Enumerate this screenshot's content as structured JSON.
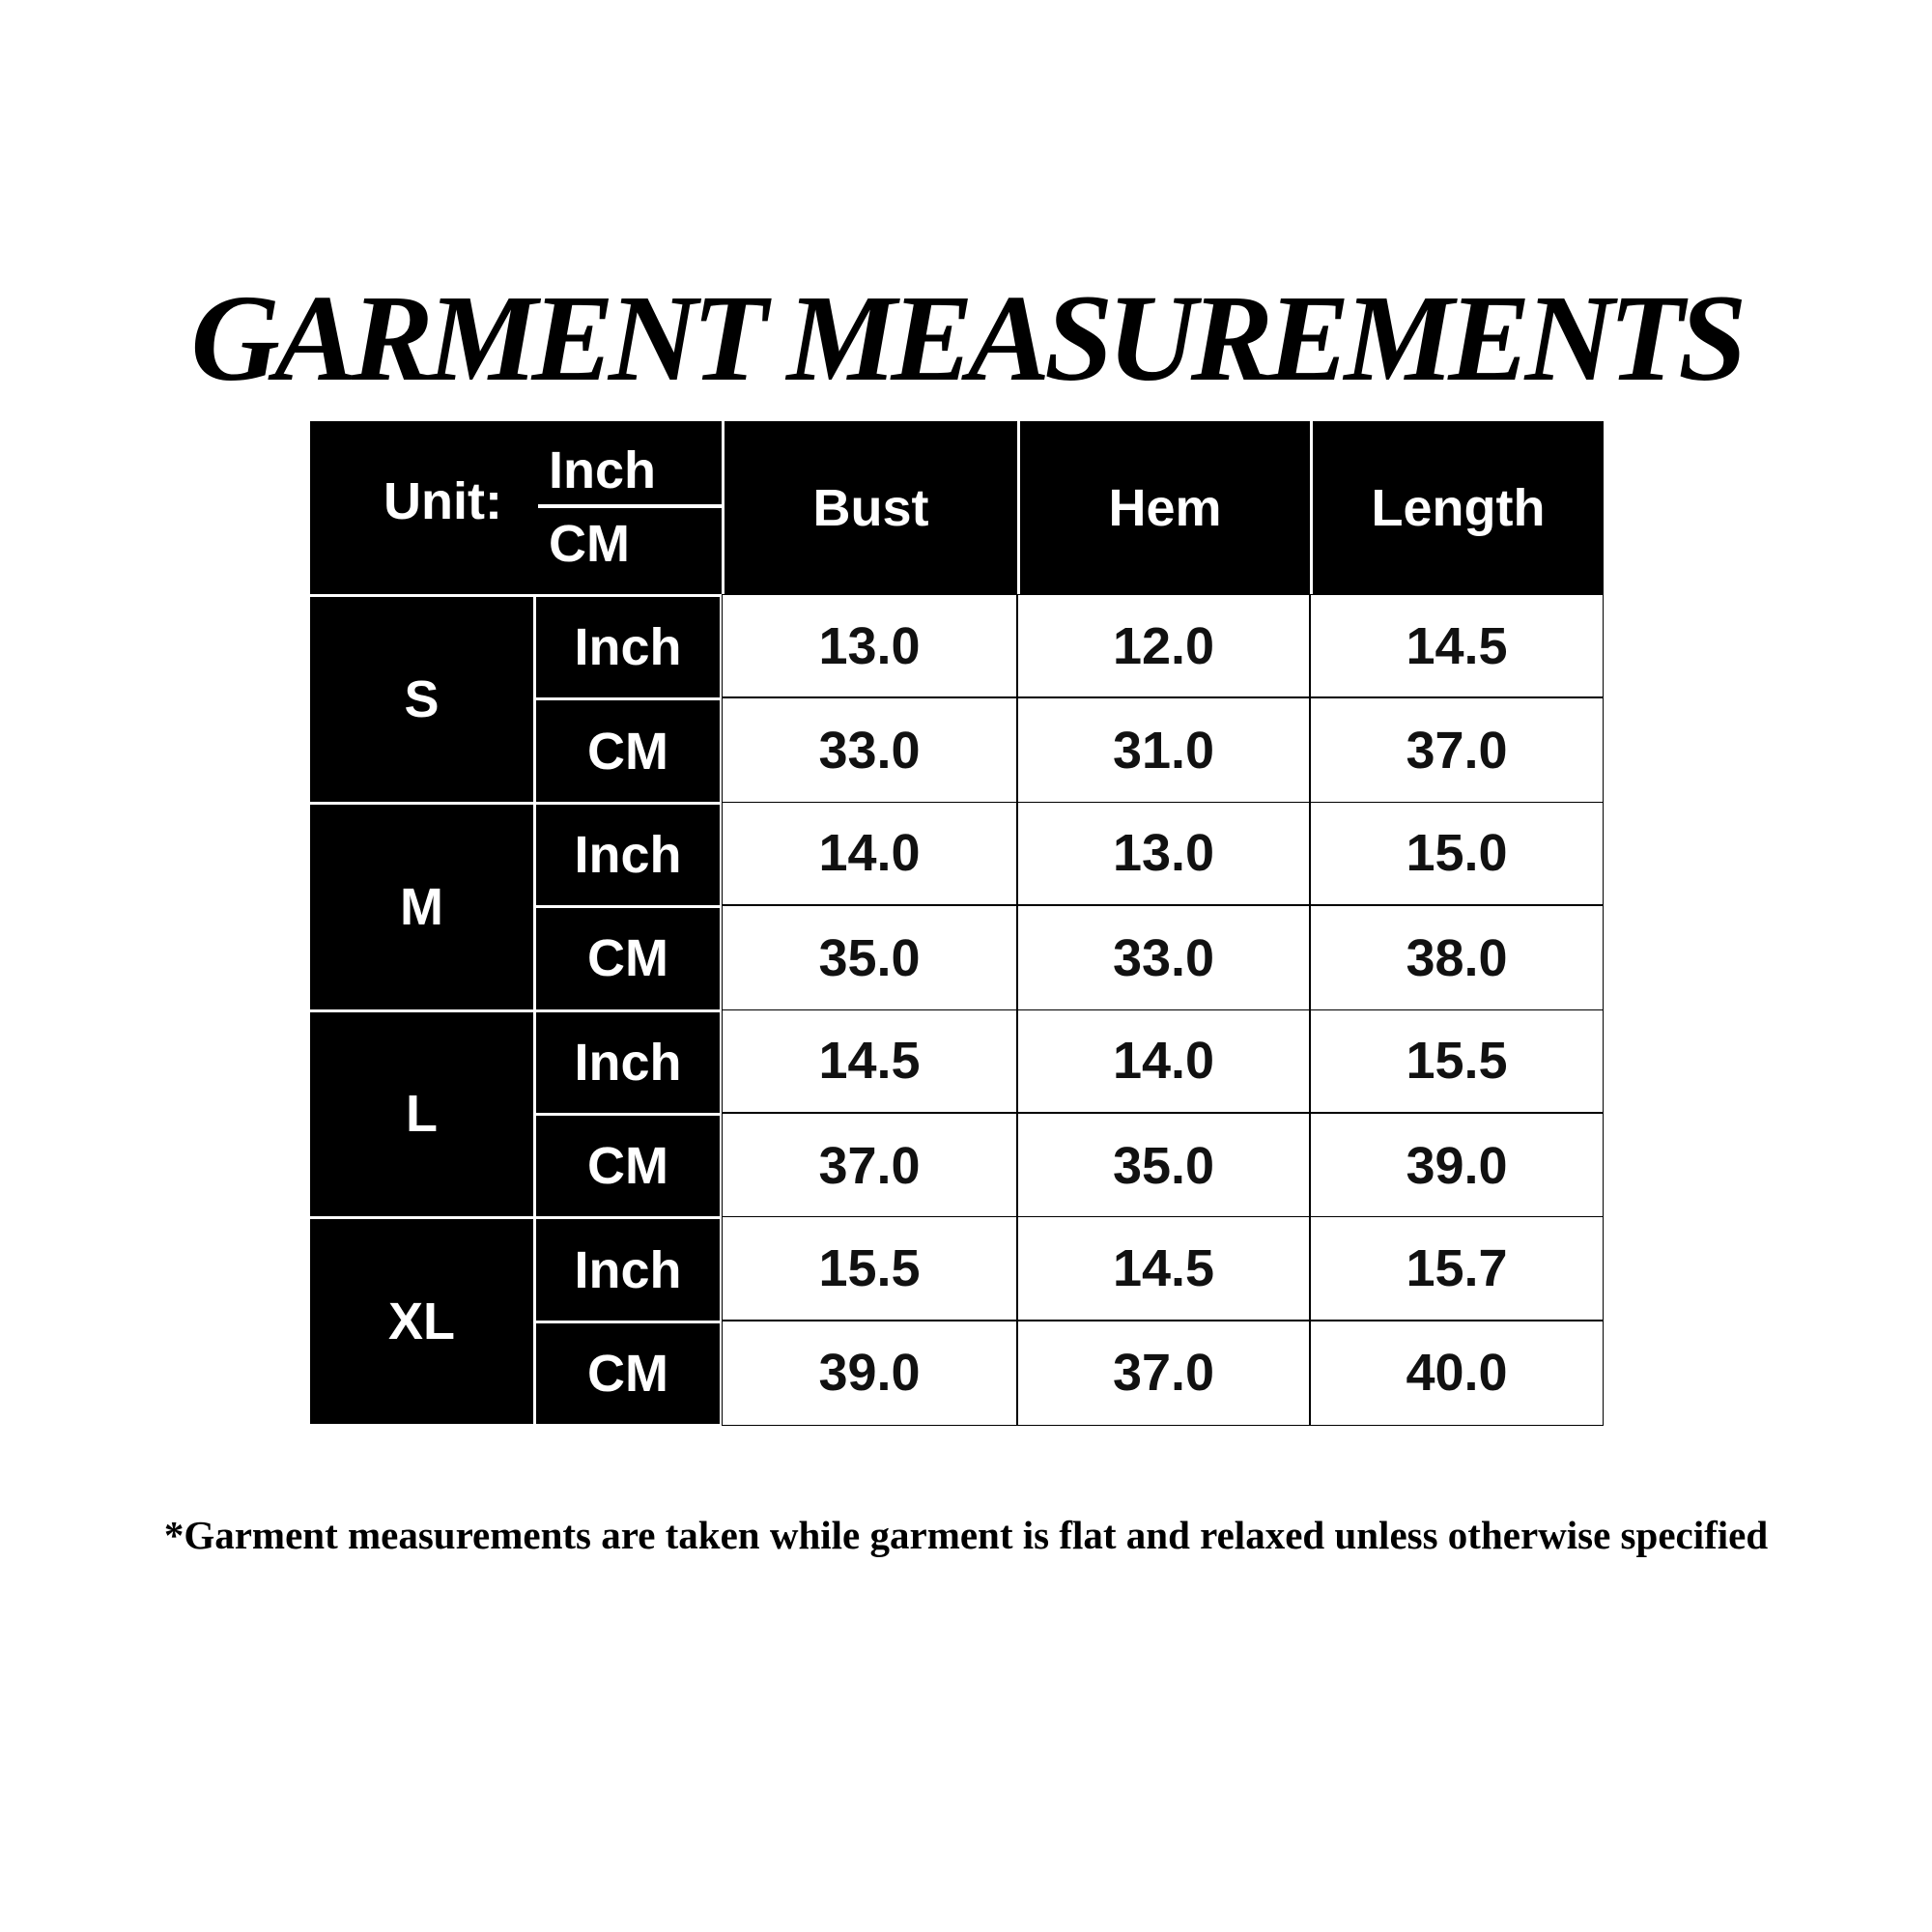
{
  "title": "GARMENT MEASUREMENTS",
  "table": {
    "unit_label": "Unit:",
    "unit_inch": "Inch",
    "unit_cm": "CM",
    "columns": [
      "Bust",
      "Hem",
      "Length"
    ],
    "sizes": [
      {
        "size": "S",
        "inch": {
          "label": "Inch",
          "values": [
            "13.0",
            "12.0",
            "14.5"
          ]
        },
        "cm": {
          "label": "CM",
          "values": [
            "33.0",
            "31.0",
            "37.0"
          ]
        }
      },
      {
        "size": "M",
        "inch": {
          "label": "Inch",
          "values": [
            "14.0",
            "13.0",
            "15.0"
          ]
        },
        "cm": {
          "label": "CM",
          "values": [
            "35.0",
            "33.0",
            "38.0"
          ]
        }
      },
      {
        "size": "L",
        "inch": {
          "label": "Inch",
          "values": [
            "14.5",
            "14.0",
            "15.5"
          ]
        },
        "cm": {
          "label": "CM",
          "values": [
            "37.0",
            "35.0",
            "39.0"
          ]
        }
      },
      {
        "size": "XL",
        "inch": {
          "label": "Inch",
          "values": [
            "15.5",
            "14.5",
            "15.7"
          ]
        },
        "cm": {
          "label": "CM",
          "values": [
            "39.0",
            "37.0",
            "40.0"
          ]
        }
      }
    ]
  },
  "note": "*Garment measurements are taken while garment is flat and relaxed unless otherwise specified"
}
